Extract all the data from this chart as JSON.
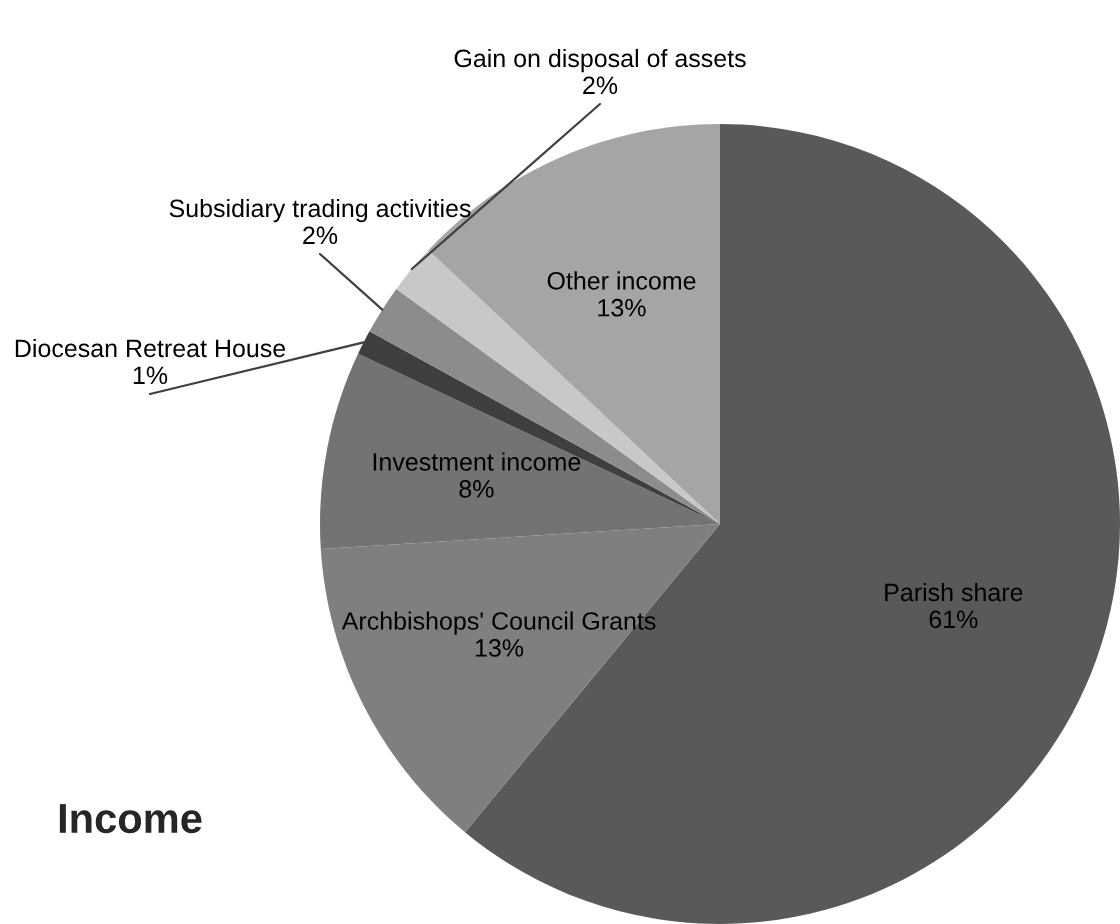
{
  "chart_data": {
    "type": "pie",
    "title": "Income",
    "categories": [
      "Parish share",
      "Archbishops' Council Grants",
      "Investment income",
      "Diocesan Retreat House",
      "Subsidiary trading activities",
      "Gain on disposal of assets",
      "Other income"
    ],
    "values": [
      61,
      13,
      8,
      1,
      2,
      2,
      13
    ],
    "colors": [
      "#595959",
      "#7f7f7f",
      "#737373",
      "#3f3f3f",
      "#8c8c8c",
      "#c8c8c8",
      "#a5a5a5"
    ],
    "value_labels": [
      "61%",
      "13%",
      "8%",
      "1%",
      "2%",
      "2%",
      "13%"
    ],
    "legend": false
  }
}
